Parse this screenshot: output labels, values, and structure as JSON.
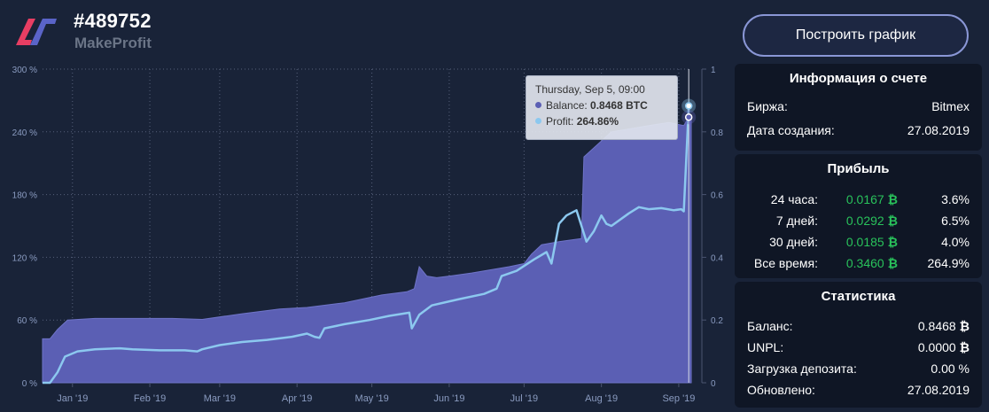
{
  "header": {
    "account_id": "#489752",
    "account_name": "MakeProfit"
  },
  "build_button_label": "Построить график",
  "account_info": {
    "title": "Информация о счете",
    "rows": [
      {
        "label": "Биржа:",
        "value": "Bitmex"
      },
      {
        "label": "Дата создания:",
        "value": "27.08.2019"
      }
    ]
  },
  "profit": {
    "title": "Прибыль",
    "rows": [
      {
        "label": "24 часа:",
        "btc": "0.0167",
        "pct": "3.6%"
      },
      {
        "label": "7 дней:",
        "btc": "0.0292",
        "pct": "6.5%"
      },
      {
        "label": "30 дней:",
        "btc": "0.0185",
        "pct": "4.0%"
      },
      {
        "label": "Все время:",
        "btc": "0.3460",
        "pct": "264.9%"
      }
    ]
  },
  "stats": {
    "title": "Статистика",
    "rows": [
      {
        "label": "Баланс:",
        "value": "0.8468"
      },
      {
        "label": "UNPL:",
        "value": "0.0000"
      },
      {
        "label": "Загрузка депозита:",
        "value": "0.00 %"
      },
      {
        "label": "Обновлено:",
        "value": "27.08.2019"
      }
    ]
  },
  "tooltip": {
    "date": "Thursday, Sep 5, 09:00",
    "balance_label": "Balance:",
    "balance_value": "0.8468 BTC",
    "profit_label": "Profit:",
    "profit_value": "264.86%"
  },
  "colors": {
    "background": "#192338",
    "panel": "#0f1625",
    "balance_fill": "#5b5fb4",
    "profit_line": "#8cc8ef",
    "accent_green": "#29c25b",
    "logo_red": "#e83e63",
    "logo_blue": "#5a64c8"
  },
  "icons": {
    "logo": "makeprofit-logo",
    "btc": "bitcoin-icon"
  },
  "chart_data": {
    "type": "area",
    "x_ticks": [
      "Jan '19",
      "Feb '19",
      "Mar '19",
      "Apr '19",
      "May '19",
      "Jun '19",
      "Jul '19",
      "Aug '19",
      "Sep '19"
    ],
    "y_left_ticks": [
      "0 %",
      "60 %",
      "120 %",
      "180 %",
      "240 %",
      "300 %"
    ],
    "y_left_range": [
      0,
      300
    ],
    "y_right_ticks": [
      "0",
      "0.2",
      "0.4",
      "0.6",
      "0.8",
      "1"
    ],
    "y_right_range": [
      0,
      1
    ],
    "grid": true,
    "series": [
      {
        "name": "Balance",
        "type": "area",
        "axis": "right",
        "points": [
          [
            "2018-12-20",
            0.14
          ],
          [
            "2018-12-23",
            0.14
          ],
          [
            "2018-12-26",
            0.17
          ],
          [
            "2018-12-30",
            0.2
          ],
          [
            "2019-01-10",
            0.205
          ],
          [
            "2019-01-25",
            0.205
          ],
          [
            "2019-02-10",
            0.205
          ],
          [
            "2019-02-22",
            0.202
          ],
          [
            "2019-03-10",
            0.22
          ],
          [
            "2019-03-25",
            0.235
          ],
          [
            "2019-04-05",
            0.24
          ],
          [
            "2019-04-20",
            0.255
          ],
          [
            "2019-05-05",
            0.28
          ],
          [
            "2019-05-15",
            0.29
          ],
          [
            "2019-05-18",
            0.3
          ],
          [
            "2019-05-20",
            0.37
          ],
          [
            "2019-05-23",
            0.34
          ],
          [
            "2019-05-27",
            0.335
          ],
          [
            "2019-06-01",
            0.34
          ],
          [
            "2019-06-10",
            0.35
          ],
          [
            "2019-06-25",
            0.37
          ],
          [
            "2019-07-01",
            0.38
          ],
          [
            "2019-07-04",
            0.41
          ],
          [
            "2019-07-08",
            0.44
          ],
          [
            "2019-07-15",
            0.45
          ],
          [
            "2019-07-24",
            0.46
          ],
          [
            "2019-07-25",
            0.72
          ],
          [
            "2019-08-05",
            0.8
          ],
          [
            "2019-08-20",
            0.82
          ],
          [
            "2019-08-28",
            0.83
          ],
          [
            "2019-09-03",
            0.82
          ],
          [
            "2019-09-05",
            0.8468
          ],
          [
            "2019-09-06",
            0.85
          ]
        ]
      },
      {
        "name": "Profit",
        "type": "line",
        "axis": "left",
        "points": [
          [
            "2018-12-20",
            0
          ],
          [
            "2018-12-23",
            0
          ],
          [
            "2018-12-26",
            10
          ],
          [
            "2018-12-29",
            25
          ],
          [
            "2019-01-03",
            30
          ],
          [
            "2019-01-10",
            32
          ],
          [
            "2019-01-20",
            33
          ],
          [
            "2019-01-25",
            32
          ],
          [
            "2019-02-05",
            31
          ],
          [
            "2019-02-15",
            31
          ],
          [
            "2019-02-20",
            30
          ],
          [
            "2019-02-22",
            32
          ],
          [
            "2019-03-01",
            36
          ],
          [
            "2019-03-10",
            39
          ],
          [
            "2019-03-20",
            41
          ],
          [
            "2019-03-30",
            44
          ],
          [
            "2019-04-05",
            47
          ],
          [
            "2019-04-08",
            44
          ],
          [
            "2019-04-10",
            43
          ],
          [
            "2019-04-12",
            52
          ],
          [
            "2019-04-20",
            56
          ],
          [
            "2019-04-30",
            60
          ],
          [
            "2019-05-08",
            64
          ],
          [
            "2019-05-16",
            67
          ],
          [
            "2019-05-17",
            52
          ],
          [
            "2019-05-20",
            65
          ],
          [
            "2019-05-25",
            74
          ],
          [
            "2019-06-05",
            80
          ],
          [
            "2019-06-15",
            85
          ],
          [
            "2019-06-20",
            90
          ],
          [
            "2019-06-22",
            102
          ],
          [
            "2019-06-28",
            107
          ],
          [
            "2019-07-05",
            118
          ],
          [
            "2019-07-10",
            125
          ],
          [
            "2019-07-12",
            114
          ],
          [
            "2019-07-15",
            152
          ],
          [
            "2019-07-18",
            160
          ],
          [
            "2019-07-22",
            165
          ],
          [
            "2019-07-26",
            135
          ],
          [
            "2019-07-29",
            145
          ],
          [
            "2019-08-01",
            160
          ],
          [
            "2019-08-03",
            152
          ],
          [
            "2019-08-05",
            150
          ],
          [
            "2019-08-12",
            162
          ],
          [
            "2019-08-14",
            165
          ],
          [
            "2019-08-16",
            168
          ],
          [
            "2019-08-20",
            166
          ],
          [
            "2019-08-25",
            167
          ],
          [
            "2019-08-30",
            165
          ],
          [
            "2019-09-02",
            166
          ],
          [
            "2019-09-03",
            164
          ],
          [
            "2019-09-05",
            264.86
          ]
        ]
      }
    ]
  }
}
